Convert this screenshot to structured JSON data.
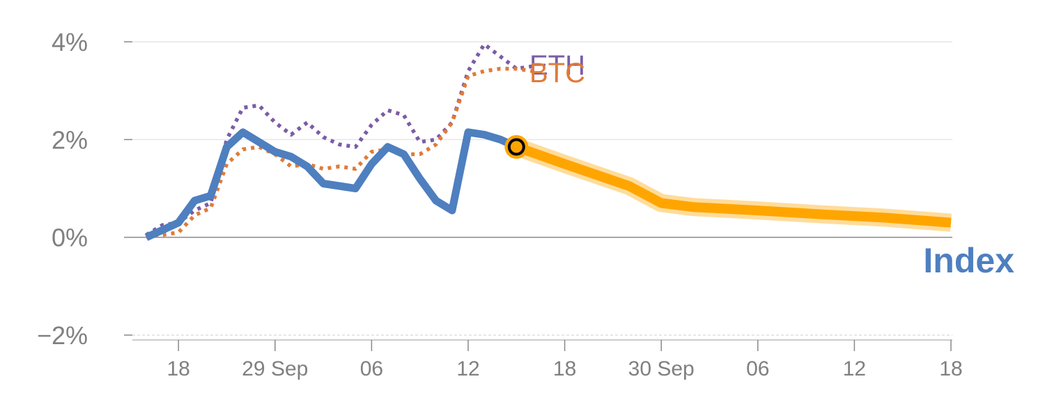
{
  "chart_data": {
    "type": "line",
    "ylim": [
      -2,
      4
    ],
    "y_ticks": [
      {
        "value": 4,
        "label": "4%"
      },
      {
        "value": 2,
        "label": "2%"
      },
      {
        "value": 0,
        "label": "0%"
      },
      {
        "value": -2,
        "label": "−2%"
      }
    ],
    "x_range": [
      0,
      50.5
    ],
    "x_ticks": [
      {
        "x": 2,
        "label": "18"
      },
      {
        "x": 8,
        "label": "29 Sep"
      },
      {
        "x": 14,
        "label": "06"
      },
      {
        "x": 20,
        "label": "12"
      },
      {
        "x": 26,
        "label": "18"
      },
      {
        "x": 32,
        "label": "30 Sep"
      },
      {
        "x": 38,
        "label": "06"
      },
      {
        "x": 44,
        "label": "12"
      },
      {
        "x": 50,
        "label": "18"
      }
    ],
    "series": [
      {
        "name": "ETH",
        "color": "#7B5CA6",
        "style": "dotted",
        "label": "ETH",
        "x": [
          0,
          1,
          2,
          3,
          4,
          5,
          6,
          7,
          8,
          9,
          10,
          11,
          12,
          13,
          14,
          15,
          16,
          17,
          18,
          19,
          20,
          21,
          22,
          23,
          24
        ],
        "values": [
          0.05,
          0.25,
          0.3,
          0.55,
          0.7,
          2.0,
          2.65,
          2.7,
          2.35,
          2.1,
          2.35,
          2.05,
          1.9,
          1.85,
          2.3,
          2.6,
          2.5,
          1.95,
          2.0,
          2.35,
          3.4,
          3.95,
          3.7,
          3.45,
          3.5
        ]
      },
      {
        "name": "BTC",
        "color": "#E07B39",
        "style": "dotted",
        "label": "BTC",
        "x": [
          0,
          1,
          2,
          3,
          4,
          5,
          6,
          7,
          8,
          9,
          10,
          11,
          12,
          13,
          14,
          15,
          16,
          17,
          18,
          19,
          20,
          21,
          22,
          23,
          24
        ],
        "values": [
          0.0,
          0.05,
          0.1,
          0.45,
          0.6,
          1.5,
          1.8,
          1.85,
          1.7,
          1.45,
          1.5,
          1.4,
          1.45,
          1.4,
          1.75,
          1.8,
          1.7,
          1.7,
          1.9,
          2.35,
          3.3,
          3.4,
          3.45,
          3.45,
          3.4
        ]
      },
      {
        "name": "Index",
        "color": "#4E7FBF",
        "style": "solid",
        "label": "Index",
        "x": [
          0,
          2,
          3,
          4,
          5,
          6,
          7,
          8,
          9,
          10,
          11,
          12,
          13,
          14,
          15,
          16,
          17,
          18,
          19,
          20,
          21,
          22,
          23
        ],
        "values": [
          0.0,
          0.3,
          0.75,
          0.85,
          1.85,
          2.15,
          1.95,
          1.75,
          1.65,
          1.45,
          1.1,
          1.05,
          1.0,
          1.5,
          1.85,
          1.7,
          1.2,
          0.75,
          0.55,
          2.15,
          2.1,
          2.0,
          1.85
        ]
      },
      {
        "name": "Forecast",
        "color": "#FFA500",
        "style": "band",
        "label": "",
        "x": [
          23,
          26,
          30,
          32,
          34,
          38,
          42,
          46,
          48,
          50
        ],
        "values": [
          1.85,
          1.5,
          1.05,
          0.7,
          0.62,
          0.55,
          0.47,
          0.4,
          0.35,
          0.3
        ]
      }
    ],
    "marker": {
      "x": 23,
      "value": 1.85,
      "color": "#FFA500"
    }
  }
}
